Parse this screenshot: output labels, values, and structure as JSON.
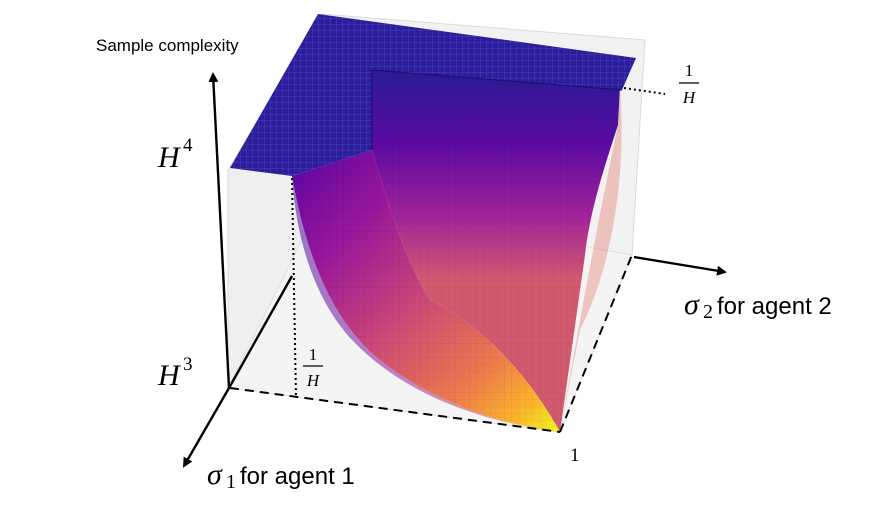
{
  "labels": {
    "z_axis": "Sample complexity",
    "z_top_base": "H",
    "z_top_exp": "4",
    "z_bottom_base": "H",
    "z_bottom_exp": "3",
    "x_axis_sym": "σ",
    "x_axis_sub": "1",
    "x_axis_text": " for agent 1",
    "y_axis_sym": "σ",
    "y_axis_sub": "2",
    "y_axis_text": " for agent 2",
    "frac_num": "1",
    "frac_den": "H",
    "corner_one": "1"
  },
  "colors": {
    "plateau": "#2c1d9c",
    "colormap_low": "#f0f921",
    "colormap_mid": "#cc4778",
    "colormap_high": "#0d0887"
  }
}
